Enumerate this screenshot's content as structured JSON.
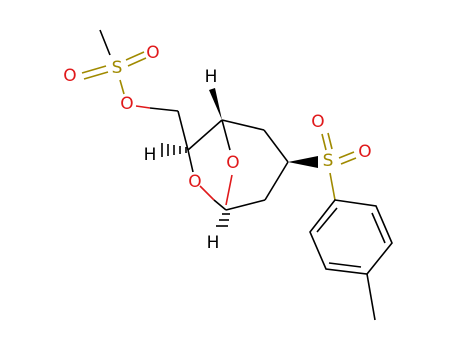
{
  "atoms": [
    {
      "label": "S"
    },
    {
      "label": "O"
    },
    {
      "label": "O"
    },
    {
      "label": "O"
    },
    {
      "label": "H"
    },
    {
      "label": "H"
    },
    {
      "label": "O"
    },
    {
      "label": "O"
    },
    {
      "label": "H"
    },
    {
      "label": "S"
    },
    {
      "label": "O"
    },
    {
      "label": "O"
    }
  ]
}
